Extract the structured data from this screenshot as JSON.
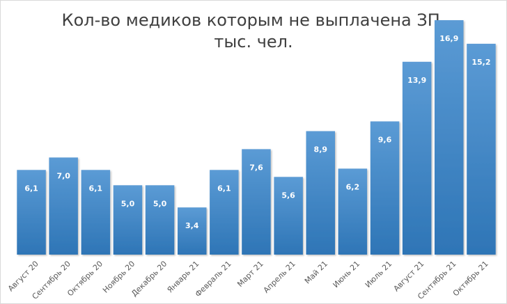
{
  "chart_data": {
    "type": "bar",
    "title": "Кол-во медиков которым не выплачена ЗП,",
    "subtitle": "тыс. чел.",
    "categories": [
      "Август 20",
      "Сентябрь 20",
      "Октябрь 20",
      "Ноябрь 20",
      "Декабрь 20",
      "Январь 21",
      "Февраль 21",
      "Март 21",
      "Апрель 21",
      "Май 21",
      "Июнь 21",
      "Июль 21",
      "Август 21",
      "Сентябрь 21",
      "Октябрь 21"
    ],
    "values": [
      6.1,
      7.0,
      6.1,
      5.0,
      5.0,
      3.4,
      6.1,
      7.6,
      5.6,
      8.9,
      6.2,
      9.6,
      13.9,
      16.9,
      15.2
    ],
    "value_labels": [
      "6,1",
      "7,0",
      "6,1",
      "5,0",
      "5,0",
      "3,4",
      "6,1",
      "7,6",
      "5,6",
      "8,9",
      "6,2",
      "9,6",
      "13,9",
      "16,9",
      "15,2"
    ],
    "xlabel": "",
    "ylabel": "",
    "ylim": [
      0,
      17.5
    ],
    "grid": false,
    "legend": "none",
    "bar_color_top": "#5b9bd5",
    "bar_color_bottom": "#2e75b6"
  }
}
